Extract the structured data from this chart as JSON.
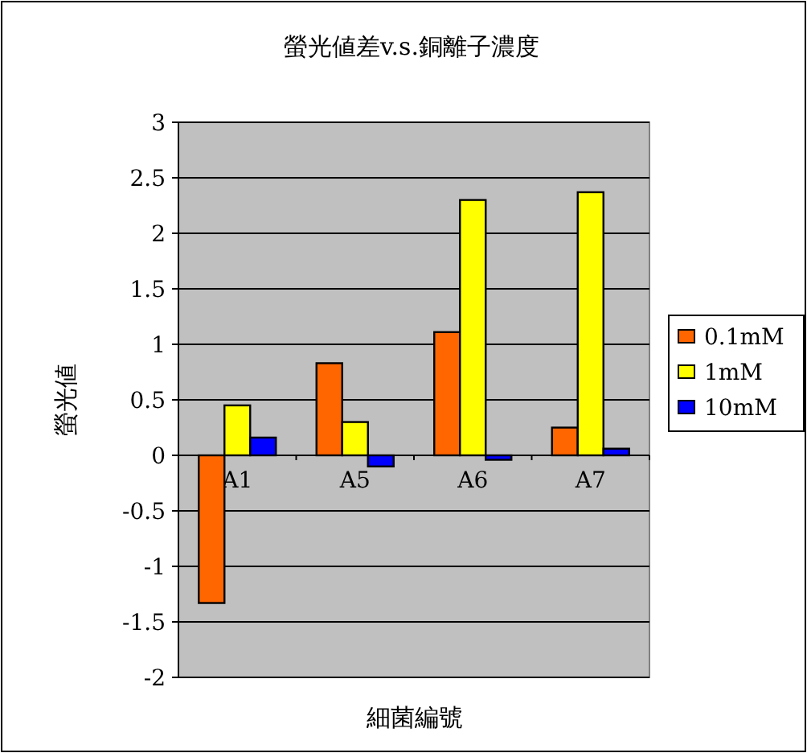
{
  "chart_data": {
    "type": "bar",
    "title": "螢光値差v.s.銅離子濃度",
    "xlabel": "細菌編號",
    "ylabel": "螢光値",
    "categories": [
      "A1",
      "A5",
      "A6",
      "A7"
    ],
    "series": [
      {
        "name": "0.1mM",
        "color": "#ff6600",
        "values": [
          -1.33,
          0.83,
          1.11,
          0.25
        ]
      },
      {
        "name": "1mM",
        "color": "#ffff00",
        "values": [
          0.45,
          0.3,
          2.3,
          2.37
        ]
      },
      {
        "name": "10mM",
        "color": "#0000ff",
        "values": [
          0.16,
          -0.1,
          -0.04,
          0.06
        ]
      }
    ],
    "ylim": [
      -2,
      3
    ],
    "yticks": [
      -2,
      -1.5,
      -1,
      -0.5,
      0,
      0.5,
      1,
      1.5,
      2,
      2.5,
      3
    ],
    "grid": "y",
    "legend": "right"
  }
}
